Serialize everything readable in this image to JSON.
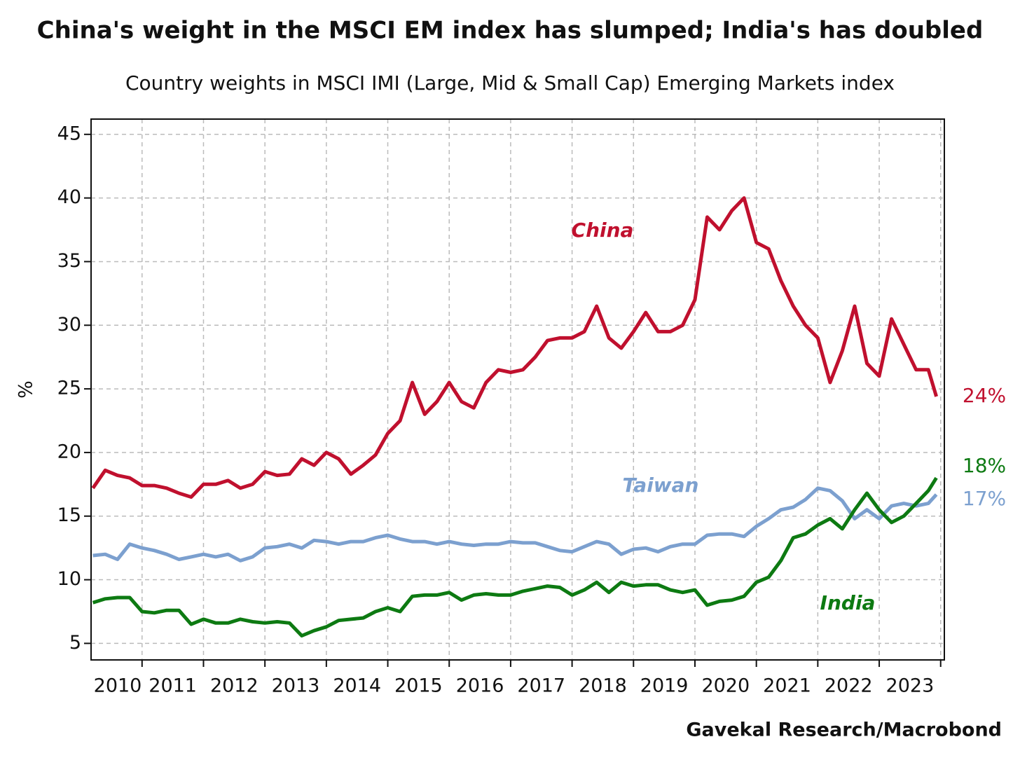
{
  "chart_data": {
    "type": "line",
    "title": "China's weight in the MSCI EM index has slumped; India's has doubled",
    "subtitle": "Country weights in MSCI IMI (Large, Mid & Small Cap) Emerging Markets index",
    "y_label": "%",
    "source": "Gavekal Research/Macrobond",
    "grid": true,
    "xlim": [
      2010.17,
      2024.06
    ],
    "xticks": [
      2010,
      2011,
      2012,
      2013,
      2014,
      2015,
      2016,
      2017,
      2018,
      2019,
      2020,
      2021,
      2022,
      2023
    ],
    "ylim": [
      3.7,
      46.2
    ],
    "yticks": [
      5,
      10,
      15,
      20,
      25,
      30,
      35,
      40,
      45
    ],
    "x": [
      2010.2,
      2010.4,
      2010.6,
      2010.8,
      2011.0,
      2011.2,
      2011.4,
      2011.6,
      2011.8,
      2012.0,
      2012.2,
      2012.4,
      2012.6,
      2012.8,
      2013.0,
      2013.2,
      2013.4,
      2013.6,
      2013.8,
      2014.0,
      2014.2,
      2014.4,
      2014.6,
      2014.8,
      2015.0,
      2015.2,
      2015.4,
      2015.6,
      2015.8,
      2016.0,
      2016.2,
      2016.4,
      2016.6,
      2016.8,
      2017.0,
      2017.2,
      2017.4,
      2017.6,
      2017.8,
      2018.0,
      2018.2,
      2018.4,
      2018.6,
      2018.8,
      2019.0,
      2019.2,
      2019.4,
      2019.6,
      2019.8,
      2020.0,
      2020.2,
      2020.4,
      2020.6,
      2020.8,
      2021.0,
      2021.2,
      2021.4,
      2021.6,
      2021.8,
      2022.0,
      2022.2,
      2022.4,
      2022.6,
      2022.8,
      2023.0,
      2023.2,
      2023.4,
      2023.6,
      2023.8,
      2023.93
    ],
    "series": [
      {
        "name": "China",
        "color": "#c0102e",
        "end_label": "24%",
        "values": [
          17.2,
          18.6,
          18.2,
          18.0,
          17.4,
          17.4,
          17.2,
          16.8,
          16.5,
          17.5,
          17.5,
          17.8,
          17.2,
          17.5,
          18.5,
          18.2,
          18.3,
          19.5,
          19.0,
          20.0,
          19.5,
          18.3,
          19.0,
          19.8,
          21.5,
          22.5,
          25.5,
          23.0,
          24.0,
          25.5,
          24.0,
          23.5,
          25.5,
          26.5,
          26.3,
          26.5,
          27.5,
          28.8,
          29.0,
          29.0,
          29.5,
          31.5,
          29.0,
          28.2,
          29.5,
          31.0,
          29.5,
          29.5,
          30.0,
          32.0,
          38.5,
          37.5,
          39.0,
          40.0,
          36.5,
          36.0,
          33.5,
          31.5,
          30.0,
          29.0,
          25.5,
          28.0,
          31.5,
          27.0,
          26.0,
          30.5,
          28.5,
          26.5,
          26.5,
          24.4
        ]
      },
      {
        "name": "Taiwan",
        "color": "#7ca0cf",
        "end_label": "17%",
        "values": [
          11.9,
          12.0,
          11.6,
          12.8,
          12.5,
          12.3,
          12.0,
          11.6,
          11.8,
          12.0,
          11.8,
          12.0,
          11.5,
          11.8,
          12.5,
          12.6,
          12.8,
          12.5,
          13.1,
          13.0,
          12.8,
          13.0,
          13.0,
          13.3,
          13.5,
          13.2,
          13.0,
          13.0,
          12.8,
          13.0,
          12.8,
          12.7,
          12.8,
          12.8,
          13.0,
          12.9,
          12.9,
          12.6,
          12.3,
          12.2,
          12.6,
          13.0,
          12.8,
          12.0,
          12.4,
          12.5,
          12.2,
          12.6,
          12.8,
          12.8,
          13.5,
          13.6,
          13.6,
          13.4,
          14.2,
          14.8,
          15.5,
          15.7,
          16.3,
          17.2,
          17.0,
          16.2,
          14.8,
          15.5,
          14.8,
          15.8,
          16.0,
          15.8,
          16.0,
          16.7
        ]
      },
      {
        "name": "India",
        "color": "#0d7a12",
        "end_label": "18%",
        "values": [
          8.2,
          8.5,
          8.6,
          8.6,
          7.5,
          7.4,
          7.6,
          7.6,
          6.5,
          6.9,
          6.6,
          6.6,
          6.9,
          6.7,
          6.6,
          6.7,
          6.6,
          5.6,
          6.0,
          6.3,
          6.8,
          6.9,
          7.0,
          7.5,
          7.8,
          7.5,
          8.7,
          8.8,
          8.8,
          9.0,
          8.4,
          8.8,
          8.9,
          8.8,
          8.8,
          9.1,
          9.3,
          9.5,
          9.4,
          8.8,
          9.2,
          9.8,
          9.0,
          9.8,
          9.5,
          9.6,
          9.6,
          9.2,
          9.0,
          9.2,
          8.0,
          8.3,
          8.4,
          8.7,
          9.8,
          10.2,
          11.5,
          13.3,
          13.6,
          14.3,
          14.8,
          14.0,
          15.5,
          16.8,
          15.5,
          14.5,
          15.0,
          16.0,
          17.0,
          18.0
        ]
      }
    ]
  }
}
